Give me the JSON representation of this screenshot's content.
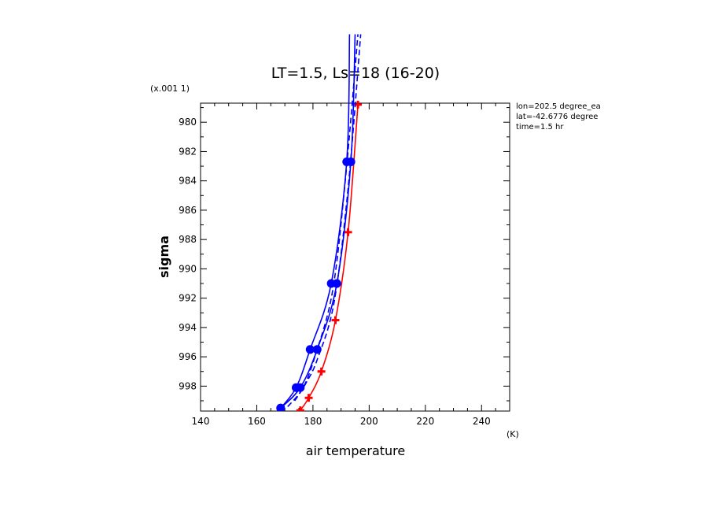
{
  "chart_data": {
    "type": "line",
    "title": "LT=1.5, Ls=18 (16-20)",
    "xlabel": "air temperature",
    "ylabel": "sigma",
    "x_unit": "(K)",
    "y_scale_label": "(x.001 1)",
    "xlim": [
      140,
      250
    ],
    "ylim": [
      999.7,
      978.7
    ],
    "y_inverted": true,
    "x_ticks": [
      140,
      160,
      180,
      200,
      220,
      240
    ],
    "y_ticks": [
      980,
      982,
      984,
      986,
      988,
      990,
      992,
      994,
      996,
      998
    ],
    "grid": false,
    "annotations": [
      "lon=202.5 degree_ea",
      "lat=-42.6776 degree",
      "time=1.5 hr"
    ],
    "colors": {
      "blue": "#0000ff",
      "red": "#ff0000"
    },
    "series": [
      {
        "color": "#ff0000",
        "style": "solid",
        "marker": "plus",
        "points": [
          [
            175.5,
            999.65
          ],
          [
            178.5,
            998.8
          ],
          [
            183,
            997.0
          ],
          [
            188,
            993.5
          ],
          [
            192.5,
            987.5
          ],
          [
            196,
            978.8
          ]
        ]
      },
      {
        "color": "#0000ff",
        "style": "solid",
        "marker": "circle",
        "points": [
          [
            168.5,
            999.5
          ],
          [
            175.5,
            998.1
          ],
          [
            181.5,
            995.5
          ],
          [
            188.5,
            991.0
          ],
          [
            193.5,
            982.7
          ],
          [
            195,
            974.0
          ]
        ]
      },
      {
        "color": "#0000ff",
        "style": "solid",
        "marker": "circle",
        "points": [
          [
            168.5,
            999.5
          ],
          [
            174,
            998.1
          ],
          [
            179,
            995.5
          ],
          [
            186.5,
            991.0
          ],
          [
            192,
            982.7
          ],
          [
            193,
            974.0
          ]
        ]
      },
      {
        "color": "#0000ff",
        "style": "dashed",
        "marker": "none",
        "points": [
          [
            171,
            999.4
          ],
          [
            176.5,
            998.1
          ],
          [
            181,
            995.8
          ],
          [
            187,
            991.5
          ],
          [
            191.5,
            984.0
          ],
          [
            196,
            974.0
          ]
        ]
      },
      {
        "color": "#0000ff",
        "style": "dashed",
        "marker": "none",
        "points": [
          [
            173.5,
            999.0
          ],
          [
            177.5,
            997.8
          ],
          [
            181.5,
            996.2
          ],
          [
            187.5,
            992.3
          ],
          [
            192.5,
            984.5
          ],
          [
            197,
            974.0
          ]
        ]
      }
    ]
  }
}
